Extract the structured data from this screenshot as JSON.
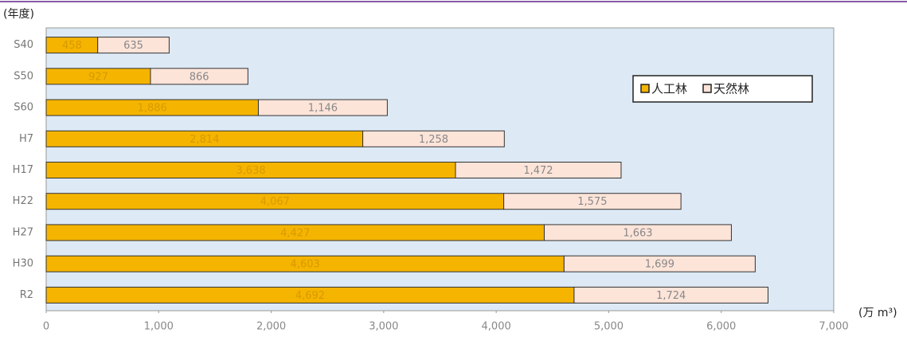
{
  "chart_data": {
    "type": "stacked_barh",
    "y_axis_label": "(年度)",
    "x_axis_label": "(万 m³)",
    "categories": [
      "S40",
      "S50",
      "S60",
      "H7",
      "H17",
      "H22",
      "H27",
      "H30",
      "R2"
    ],
    "series": [
      {
        "name": "人工林",
        "color": "#f5b400",
        "values": [
          458,
          927,
          1886,
          2814,
          3638,
          4067,
          4427,
          4603,
          4692
        ],
        "value_labels": [
          "458",
          "927",
          "1,886",
          "2,814",
          "3,638",
          "4,067",
          "4,427",
          "4,603",
          "4,692"
        ]
      },
      {
        "name": "天然林",
        "color": "#fde4d9",
        "values": [
          635,
          866,
          1146,
          1258,
          1472,
          1575,
          1663,
          1699,
          1724
        ],
        "value_labels": [
          "635",
          "866",
          "1,146",
          "1,258",
          "1,472",
          "1,575",
          "1,663",
          "1,699",
          "1,724"
        ]
      }
    ],
    "xlim": [
      0,
      7000
    ],
    "xticks": [
      0,
      {
        "value": 1000,
        "label": "1,000"
      },
      {
        "value": 2000,
        "label": "2,000"
      },
      {
        "value": 3000,
        "label": "3,000"
      },
      {
        "value": 4000,
        "label": "4,000"
      },
      {
        "value": 5000,
        "label": "5,000"
      },
      {
        "value": 6000,
        "label": "6,000"
      },
      {
        "value": 7000,
        "label": "7,000"
      }
    ],
    "legend": "upper right"
  }
}
